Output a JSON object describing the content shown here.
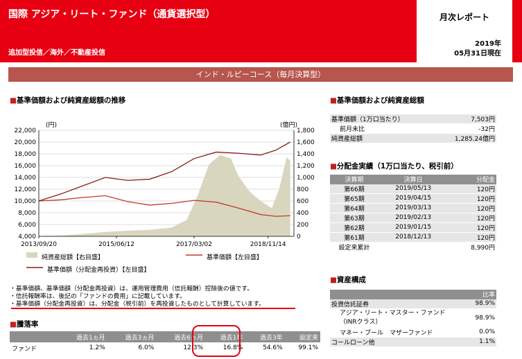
{
  "header": {
    "title": "国際 アジア・リート・ファンド（通貨選択型）",
    "subtitle": "追加型投信／海外／不動産投信",
    "report": "月次レポート",
    "date_year": "2019年",
    "date_day": "05月31日現在"
  },
  "course": "インド・ルピーコース（毎月決算型）",
  "left": {
    "chart_heading": "基準価額および純資産総額の推移",
    "notes": [
      "・基準価額、基準価額（分配金再投資）は、運用管理費用（信託報酬）控除後の値です。",
      "・信託報酬率は、後記の「ファンドの費用」に記載しています。",
      "・基準価額（分配金再投資）は、分配金（税引前）を再投資したものとして計算しています。"
    ],
    "perf_heading": "騰落率",
    "perf_headers": [
      "",
      "過去1ヵ月",
      "過去3ヵ月",
      "過去6ヵ月",
      "過去1年",
      "過去3年",
      "設定来"
    ],
    "perf_row": [
      "ファンド",
      "1.2%",
      "6.0%",
      "12.3%",
      "16.8%",
      "54.6%",
      "99.1%"
    ]
  },
  "chart_data": {
    "type": "line+area",
    "left_axis": {
      "unit": "(円)",
      "ylim": [
        4000,
        22000
      ],
      "ticks": [
        "22,000",
        "20,000",
        "18,000",
        "16,000",
        "14,000",
        "12,000",
        "10,000",
        "8,000",
        "6,000",
        "4,000"
      ]
    },
    "right_axis": {
      "unit": "(億円)",
      "ylim": [
        0,
        1800
      ],
      "ticks": [
        "1,800",
        "1,600",
        "1,400",
        "1,200",
        "1,000",
        "800",
        "600",
        "400",
        "200",
        "0"
      ]
    },
    "x_ticks": [
      "2013/09/20",
      "2015/06/12",
      "2017/03/02",
      "2018/11/14"
    ],
    "series": [
      {
        "name": "純資産総額【右目盛】",
        "axis": "right",
        "color": "#d9d6c0",
        "x": [
          "2013/09",
          "2014/03",
          "2014/09",
          "2015/03",
          "2015/09",
          "2016/03",
          "2016/09",
          "2017/01",
          "2017/04",
          "2017/07",
          "2017/10",
          "2018/01",
          "2018/03",
          "2018/06",
          "2018/09",
          "2018/12",
          "2019/02",
          "2019/04",
          "2019/05"
        ],
        "values": [
          5,
          15,
          40,
          75,
          95,
          110,
          150,
          280,
          700,
          1220,
          1380,
          1320,
          1020,
          760,
          600,
          480,
          800,
          1340,
          1290
        ]
      },
      {
        "name": "基準価額【左目盛】",
        "axis": "left",
        "color": "#c0392b",
        "x": [
          "2013/09",
          "2014/03",
          "2014/09",
          "2015/03",
          "2015/09",
          "2016/03",
          "2016/09",
          "2017/03",
          "2017/09",
          "2018/03",
          "2018/09",
          "2019/01",
          "2019/05"
        ],
        "values": [
          10000,
          10200,
          10600,
          10900,
          9900,
          9300,
          9600,
          10100,
          9800,
          8800,
          7700,
          7400,
          7500
        ]
      },
      {
        "name": "基準価額（分配金再投資）【左目盛】",
        "axis": "left",
        "color": "#8b1a1a",
        "x": [
          "2013/09",
          "2014/03",
          "2014/09",
          "2015/03",
          "2015/09",
          "2016/03",
          "2016/09",
          "2017/03",
          "2017/09",
          "2018/03",
          "2018/09",
          "2019/01",
          "2019/05"
        ],
        "values": [
          10000,
          11200,
          12600,
          14000,
          13500,
          13700,
          15000,
          17200,
          18300,
          18100,
          17800,
          18600,
          20000
        ]
      }
    ]
  },
  "right": {
    "nav_heading": "基準価額および純資産総額",
    "nav_rows": [
      {
        "label": "基準価額（1万口当たり）",
        "value": "7,503円"
      },
      {
        "label": "前月末比",
        "value": "-32円"
      },
      {
        "label": "純資産総額",
        "value": "1,285.24億円"
      }
    ],
    "dist_heading": "分配金実績（1万口当たり、税引前）",
    "dist_headers": [
      "決算期",
      "決算日",
      "分配金"
    ],
    "dist_rows": [
      [
        "第66期",
        "2019/05/13",
        "120円"
      ],
      [
        "第65期",
        "2019/04/15",
        "120円"
      ],
      [
        "第64期",
        "2019/03/13",
        "120円"
      ],
      [
        "第63期",
        "2019/02/13",
        "120円"
      ],
      [
        "第62期",
        "2019/01/15",
        "120円"
      ],
      [
        "第61期",
        "2018/12/13",
        "120円"
      ]
    ],
    "dist_total_label": "設定来累計",
    "dist_total_value": "8,990円",
    "assets_heading": "資産構成",
    "assets_header": "比率",
    "assets_rows": [
      {
        "label": "投資信託証券",
        "value": "98.9%"
      },
      {
        "label": "アジア・リート・マスター・ファンド（INRクラス）",
        "value": "98.9%"
      },
      {
        "label": "マネー・プール　マザーファンド",
        "value": "0.0%"
      },
      {
        "label": "コールローン他",
        "value": "1.1%"
      }
    ]
  }
}
